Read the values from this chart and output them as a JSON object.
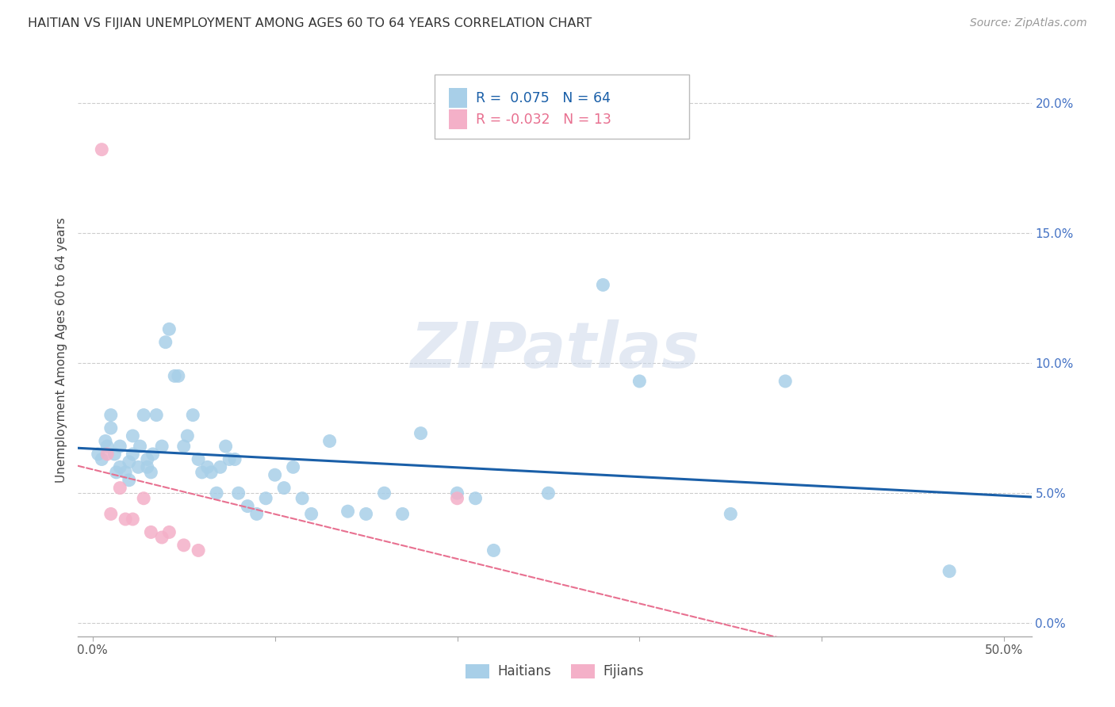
{
  "title": "HAITIAN VS FIJIAN UNEMPLOYMENT AMONG AGES 60 TO 64 YEARS CORRELATION CHART",
  "source": "Source: ZipAtlas.com",
  "ylabel": "Unemployment Among Ages 60 to 64 years",
  "xlim": [
    -0.008,
    0.515
  ],
  "ylim": [
    -0.005,
    0.215
  ],
  "xticks": [
    0.0,
    0.1,
    0.2,
    0.3,
    0.4,
    0.5
  ],
  "xtick_labels": [
    "0.0%",
    "",
    "",
    "",
    "",
    "50.0%"
  ],
  "yticks": [
    0.0,
    0.05,
    0.1,
    0.15,
    0.2
  ],
  "ytick_labels_right": [
    "0.0%",
    "5.0%",
    "10.0%",
    "15.0%",
    "20.0%"
  ],
  "haitians_R": "0.075",
  "haitians_N": "64",
  "fijians_R": "-0.032",
  "fijians_N": "13",
  "haitian_color": "#a8cfe8",
  "fijian_color": "#f4b0c8",
  "haitian_line_color": "#1a5fa8",
  "fijian_line_color": "#e87090",
  "legend_label_haitian": "Haitians",
  "legend_label_fijian": "Fijians",
  "watermark": "ZIPatlas",
  "haitians_x": [
    0.003,
    0.005,
    0.007,
    0.008,
    0.01,
    0.01,
    0.012,
    0.013,
    0.015,
    0.015,
    0.018,
    0.02,
    0.02,
    0.022,
    0.022,
    0.025,
    0.026,
    0.028,
    0.03,
    0.03,
    0.032,
    0.033,
    0.035,
    0.038,
    0.04,
    0.042,
    0.045,
    0.047,
    0.05,
    0.052,
    0.055,
    0.058,
    0.06,
    0.063,
    0.065,
    0.068,
    0.07,
    0.073,
    0.075,
    0.078,
    0.08,
    0.085,
    0.09,
    0.095,
    0.1,
    0.105,
    0.11,
    0.115,
    0.12,
    0.13,
    0.14,
    0.15,
    0.16,
    0.17,
    0.18,
    0.2,
    0.21,
    0.22,
    0.25,
    0.28,
    0.3,
    0.35,
    0.38,
    0.47
  ],
  "haitians_y": [
    0.065,
    0.063,
    0.07,
    0.068,
    0.075,
    0.08,
    0.065,
    0.058,
    0.068,
    0.06,
    0.058,
    0.055,
    0.062,
    0.065,
    0.072,
    0.06,
    0.068,
    0.08,
    0.06,
    0.063,
    0.058,
    0.065,
    0.08,
    0.068,
    0.108,
    0.113,
    0.095,
    0.095,
    0.068,
    0.072,
    0.08,
    0.063,
    0.058,
    0.06,
    0.058,
    0.05,
    0.06,
    0.068,
    0.063,
    0.063,
    0.05,
    0.045,
    0.042,
    0.048,
    0.057,
    0.052,
    0.06,
    0.048,
    0.042,
    0.07,
    0.043,
    0.042,
    0.05,
    0.042,
    0.073,
    0.05,
    0.048,
    0.028,
    0.05,
    0.13,
    0.093,
    0.042,
    0.093,
    0.02
  ],
  "fijians_x": [
    0.005,
    0.008,
    0.01,
    0.015,
    0.018,
    0.022,
    0.028,
    0.032,
    0.038,
    0.042,
    0.05,
    0.058,
    0.2
  ],
  "fijians_y": [
    0.182,
    0.065,
    0.042,
    0.052,
    0.04,
    0.04,
    0.048,
    0.035,
    0.033,
    0.035,
    0.03,
    0.028,
    0.048
  ]
}
